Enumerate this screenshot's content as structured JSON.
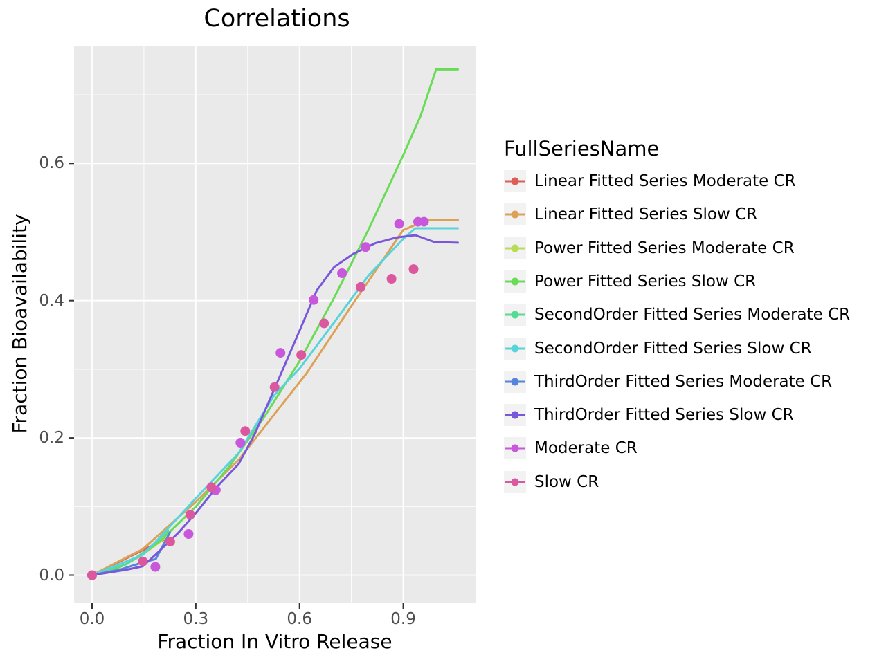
{
  "title": "Correlations",
  "x_axis": {
    "label": "Fraction In Vitro Release",
    "ticks": [
      "0.0",
      "0.3",
      "0.6",
      "0.9"
    ],
    "tick_values": [
      0,
      0.3,
      0.6,
      0.9
    ]
  },
  "y_axis": {
    "label": "Fraction Bioavailability",
    "ticks": [
      "0.0",
      "0.2",
      "0.4",
      "0.6"
    ],
    "tick_values": [
      0,
      0.2,
      0.4,
      0.6
    ]
  },
  "legend": {
    "title": "FullSeriesName",
    "entries": [
      {
        "label": "Linear Fitted Series Moderate CR",
        "color": "#DB5F57"
      },
      {
        "label": "Linear Fitted Series Slow CR",
        "color": "#DBA157"
      },
      {
        "label": "Power Fitted Series Moderate CR",
        "color": "#B9DB57"
      },
      {
        "label": "Power Fitted Series Slow CR",
        "color": "#69DB57"
      },
      {
        "label": "SecondOrder Fitted Series Moderate CR",
        "color": "#57DB94"
      },
      {
        "label": "SecondOrder Fitted Series Slow CR",
        "color": "#57D3DB"
      },
      {
        "label": "ThirdOrder Fitted Series Moderate CR",
        "color": "#5784DB"
      },
      {
        "label": "ThirdOrder Fitted Series Slow CR",
        "color": "#7957DB"
      },
      {
        "label": "Moderate CR",
        "color": "#C957DB"
      },
      {
        "label": "Slow CR",
        "color": "#DB579E"
      }
    ]
  },
  "chart_data": {
    "type": "line",
    "title": "Correlations",
    "xlabel": "Fraction In Vitro Release",
    "ylabel": "Fraction Bioavailability",
    "xlim": [
      -0.052,
      1.101
    ],
    "ylim": [
      -0.041,
      0.772
    ],
    "grid": "on",
    "legend_position": "right",
    "panel_background": "#EAEAEA",
    "x_major_gridlines": [
      0,
      0.3,
      0.6,
      0.9
    ],
    "x_minor_gridlines": [
      0.15,
      0.45,
      0.75,
      1.05
    ],
    "y_major_gridlines": [
      0,
      0.2,
      0.4,
      0.6
    ],
    "y_minor_gridlines": [
      0.1,
      0.3,
      0.5,
      0.7
    ],
    "line_series": [
      {
        "name": "Linear Fitted Series Moderate CR",
        "color": "#DB5F57",
        "points": [
          [
            0,
            0
          ],
          [
            0.21,
            0.052
          ]
        ]
      },
      {
        "name": "Linear Fitted Series Slow CR",
        "color": "#DBA157",
        "points": [
          [
            0,
            0
          ],
          [
            0.147,
            0.038
          ],
          [
            0.3,
            0.107
          ],
          [
            0.424,
            0.168
          ],
          [
            0.62,
            0.294
          ],
          [
            0.75,
            0.392
          ],
          [
            0.9,
            0.503
          ],
          [
            0.97,
            0.5175
          ],
          [
            1.058,
            0.5175
          ]
        ]
      },
      {
        "name": "Power Fitted Series Moderate CR",
        "color": "#B9DB57",
        "points": [
          [
            0,
            0
          ],
          [
            0.07,
            0.009
          ],
          [
            0.14,
            0.0275
          ],
          [
            0.21,
            0.0535
          ]
        ]
      },
      {
        "name": "Power Fitted Series Slow CR",
        "color": "#69DB57",
        "points": [
          [
            0,
            0
          ],
          [
            0.05,
            0.0052
          ],
          [
            0.1,
            0.0163
          ],
          [
            0.15,
            0.0318
          ],
          [
            0.2,
            0.0512
          ],
          [
            0.3,
            0.0998
          ],
          [
            0.4,
            0.1605
          ],
          [
            0.5,
            0.232
          ],
          [
            0.6,
            0.3117
          ],
          [
            0.7,
            0.404
          ],
          [
            0.8,
            0.504
          ],
          [
            0.9,
            0.612
          ],
          [
            0.95,
            0.669
          ],
          [
            0.995,
            0.737
          ],
          [
            1.058,
            0.737
          ]
        ]
      },
      {
        "name": "SecondOrder Fitted Series Moderate CR",
        "color": "#57DB94",
        "points": [
          [
            0,
            0
          ],
          [
            0.1,
            0.016
          ],
          [
            0.16,
            0.037
          ],
          [
            0.22,
            0.065
          ]
        ]
      },
      {
        "name": "SecondOrder Fitted Series Slow CR",
        "color": "#57D3DB",
        "points": [
          [
            0,
            0
          ],
          [
            0.147,
            0.0295
          ],
          [
            0.184,
            0.0486
          ],
          [
            0.3,
            0.112
          ],
          [
            0.424,
            0.178
          ],
          [
            0.528,
            0.263
          ],
          [
            0.6,
            0.301
          ],
          [
            0.7,
            0.368
          ],
          [
            0.8,
            0.437
          ],
          [
            0.9,
            0.49
          ],
          [
            0.935,
            0.5055
          ],
          [
            1.058,
            0.5055
          ]
        ]
      },
      {
        "name": "ThirdOrder Fitted Series Moderate CR",
        "color": "#5784DB",
        "points": [
          [
            0,
            0
          ],
          [
            0.08,
            0.008
          ],
          [
            0.147,
            0.0185
          ],
          [
            0.184,
            0.0234
          ],
          [
            0.225,
            0.062
          ]
        ]
      },
      {
        "name": "ThirdOrder Fitted Series Slow CR",
        "color": "#7957DB",
        "points": [
          [
            0,
            0
          ],
          [
            0.1,
            0.008
          ],
          [
            0.147,
            0.013
          ],
          [
            0.184,
            0.03
          ],
          [
            0.25,
            0.062
          ],
          [
            0.3,
            0.0905
          ],
          [
            0.36,
            0.128
          ],
          [
            0.424,
            0.162
          ],
          [
            0.47,
            0.205
          ],
          [
            0.528,
            0.272
          ],
          [
            0.6,
            0.356
          ],
          [
            0.65,
            0.415
          ],
          [
            0.7,
            0.449
          ],
          [
            0.755,
            0.468
          ],
          [
            0.82,
            0.484
          ],
          [
            0.88,
            0.492
          ],
          [
            0.935,
            0.4955
          ],
          [
            0.99,
            0.4855
          ],
          [
            1.058,
            0.4845
          ]
        ]
      }
    ],
    "scatter_series": [
      {
        "name": "Moderate CR",
        "color": "#C957DB",
        "points": [
          [
            0,
            0
          ],
          [
            0.183,
            0.012
          ],
          [
            0.279,
            0.06
          ],
          [
            0.358,
            0.124
          ],
          [
            0.429,
            0.193
          ],
          [
            0.545,
            0.324
          ],
          [
            0.641,
            0.401
          ],
          [
            0.723,
            0.44
          ],
          [
            0.791,
            0.478
          ],
          [
            0.888,
            0.512
          ],
          [
            0.943,
            0.515
          ],
          [
            0.96,
            0.515
          ]
        ]
      },
      {
        "name": "Slow CR",
        "color": "#DB579E",
        "points": [
          [
            0,
            0
          ],
          [
            0.147,
            0.02
          ],
          [
            0.226,
            0.049
          ],
          [
            0.284,
            0.088
          ],
          [
            0.345,
            0.128
          ],
          [
            0.443,
            0.21
          ],
          [
            0.528,
            0.274
          ],
          [
            0.605,
            0.321
          ],
          [
            0.671,
            0.367
          ],
          [
            0.777,
            0.42
          ],
          [
            0.866,
            0.432
          ],
          [
            0.93,
            0.446
          ]
        ]
      }
    ]
  }
}
